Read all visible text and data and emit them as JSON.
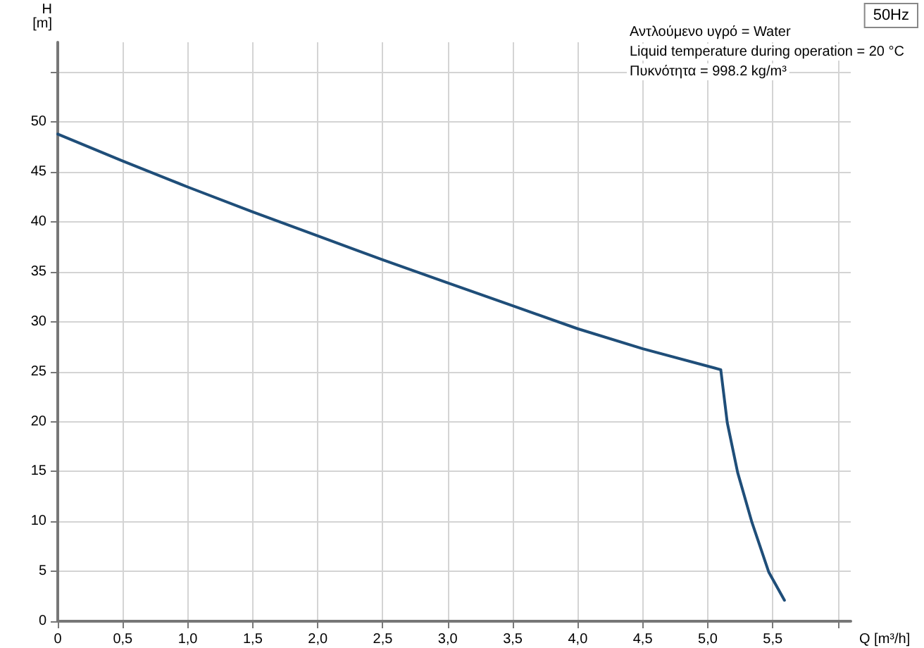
{
  "chart_data": {
    "type": "line",
    "title": "50Hz",
    "xlabel": "Q [m³/h]",
    "ylabel": "H\n[m]",
    "annotations": [
      "Αντλούμενο υγρό = Water",
      "Liquid temperature during operation = 20 °C",
      "Πυκνότητα = 998.2 kg/m³"
    ],
    "x": [
      0,
      0.5,
      1,
      1.5,
      2,
      2.5,
      3,
      3.5,
      4,
      4.5,
      5.1,
      5.15,
      5.23,
      5.34,
      5.47,
      5.59
    ],
    "series": [
      {
        "color": "#1f4e79",
        "values": [
          48.8,
          46.1,
          43.5,
          41.0,
          38.6,
          36.2,
          33.9,
          31.6,
          29.3,
          27.3,
          25.2,
          19.9,
          14.9,
          9.9,
          4.9,
          2.1
        ]
      }
    ],
    "xlim": [
      0,
      6.1
    ],
    "xticks": [
      {
        "value": 0,
        "label": "0"
      },
      {
        "value": 0.5,
        "label": "0,5"
      },
      {
        "value": 1,
        "label": "1,0"
      },
      {
        "value": 1.5,
        "label": "1,5"
      },
      {
        "value": 2,
        "label": "2,0"
      },
      {
        "value": 2.5,
        "label": "2,5"
      },
      {
        "value": 3,
        "label": "3,0"
      },
      {
        "value": 3.5,
        "label": "3,5"
      },
      {
        "value": 4,
        "label": "4,0"
      },
      {
        "value": 4.5,
        "label": "4,5"
      },
      {
        "value": 5,
        "label": "5,0"
      },
      {
        "value": 5.5,
        "label": "5,5"
      },
      {
        "value": 6,
        "label": null
      }
    ],
    "ylim": [
      0,
      58
    ],
    "yticks": [
      0,
      5,
      10,
      15,
      20,
      25,
      30,
      35,
      40,
      45,
      50,
      {
        "value": 55,
        "label": null
      }
    ],
    "grid": true,
    "marker": "none",
    "line_style": "solid"
  }
}
